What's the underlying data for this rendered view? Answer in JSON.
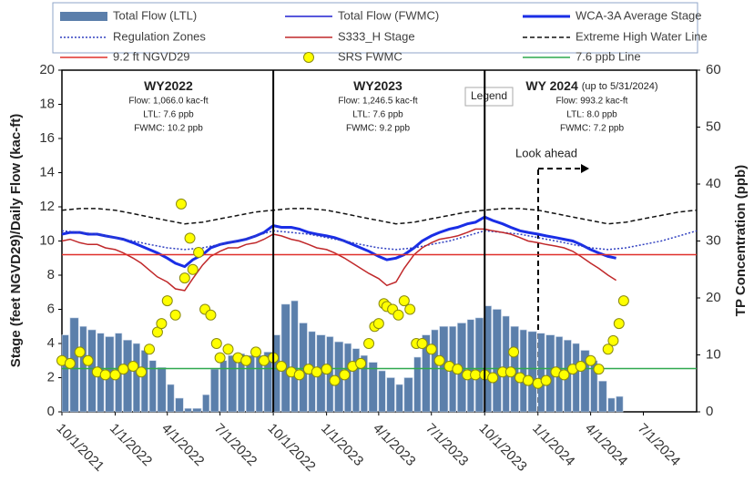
{
  "chart_data": {
    "type": "combo",
    "y_label": "Stage (feet NGVD29)/Daily Flow (kac-ft)",
    "y2_label": "TP Concentration (ppb)",
    "ylim": [
      0,
      20
    ],
    "yticks": [
      0,
      2,
      4,
      6,
      8,
      10,
      12,
      14,
      16,
      18,
      20
    ],
    "y2lim": [
      0,
      60
    ],
    "y2ticks": [
      0,
      10,
      20,
      30,
      40,
      50,
      60
    ],
    "xlim": [
      "10/1/2021",
      "10/1/2024"
    ],
    "xticks": [
      "10/1/2021",
      "1/1/2022",
      "4/1/2022",
      "7/1/2022",
      "10/1/2022",
      "1/1/2023",
      "4/1/2023",
      "7/1/2023",
      "10/1/2023",
      "1/1/2024",
      "4/1/2024",
      "7/1/2024"
    ],
    "vlines": [
      "10/1/2022",
      "10/1/2023"
    ],
    "x": [
      "10/1/2021",
      "10/15/2021",
      "11/1/2021",
      "11/15/2021",
      "12/1/2021",
      "12/15/2021",
      "1/1/2022",
      "1/15/2022",
      "2/1/2022",
      "2/15/2022",
      "3/1/2022",
      "3/15/2022",
      "4/1/2022",
      "4/15/2022",
      "5/1/2022",
      "5/15/2022",
      "6/1/2022",
      "6/15/2022",
      "7/1/2022",
      "7/15/2022",
      "8/1/2022",
      "8/15/2022",
      "9/1/2022",
      "9/15/2022",
      "10/1/2022",
      "10/15/2022",
      "11/1/2022",
      "11/15/2022",
      "12/1/2022",
      "12/15/2022",
      "1/1/2023",
      "1/15/2023",
      "2/1/2023",
      "2/15/2023",
      "3/1/2023",
      "3/15/2023",
      "4/1/2023",
      "4/15/2023",
      "5/1/2023",
      "5/15/2023",
      "6/1/2023",
      "6/15/2023",
      "7/1/2023",
      "7/15/2023",
      "8/1/2023",
      "8/15/2023",
      "9/1/2023",
      "9/15/2023",
      "10/1/2023",
      "10/15/2023",
      "11/1/2023",
      "11/15/2023",
      "12/1/2023",
      "12/15/2023",
      "1/1/2024",
      "1/15/2024",
      "2/1/2024",
      "2/15/2024",
      "3/1/2024",
      "3/15/2024",
      "4/1/2024",
      "4/15/2024",
      "5/1/2024",
      "5/15/2024"
    ],
    "series": [
      {
        "name": "Total Flow (LTL)",
        "kind": "bar",
        "color": "#5b7fab",
        "values": [
          4.5,
          5.5,
          5.0,
          4.8,
          4.6,
          4.4,
          4.6,
          4.2,
          4.0,
          3.6,
          3.0,
          2.6,
          1.6,
          0.8,
          0.2,
          0.2,
          1.0,
          2.5,
          3.0,
          3.3,
          3.4,
          3.3,
          3.3,
          3.5,
          4.5,
          6.3,
          6.5,
          5.2,
          4.7,
          4.5,
          4.4,
          4.1,
          4.0,
          3.7,
          3.3,
          2.9,
          2.4,
          2.0,
          1.6,
          2.0,
          3.2,
          4.5,
          4.8,
          5.0,
          5.0,
          5.2,
          5.4,
          5.5,
          6.2,
          6.0,
          5.6,
          5.0,
          4.8,
          4.7,
          4.6,
          4.5,
          4.4,
          4.2,
          4.0,
          3.6,
          3.0,
          1.8,
          0.8,
          0.9
        ]
      },
      {
        "name": "Total Flow (FWMC)",
        "kind": "line",
        "color": "#2020d0",
        "x": [],
        "values": []
      },
      {
        "name": "WCA-3A Average Stage",
        "kind": "line",
        "color": "#1a2ee6",
        "line_width": 3,
        "values": [
          10.4,
          10.5,
          10.5,
          10.4,
          10.4,
          10.3,
          10.2,
          10.1,
          9.9,
          9.7,
          9.5,
          9.3,
          9.0,
          8.7,
          8.5,
          8.9,
          9.2,
          9.6,
          9.8,
          9.9,
          10.0,
          10.1,
          10.3,
          10.5,
          10.9,
          10.8,
          10.8,
          10.7,
          10.5,
          10.4,
          10.3,
          10.2,
          10.0,
          9.8,
          9.6,
          9.4,
          9.1,
          8.9,
          9.0,
          9.2,
          9.6,
          10.0,
          10.3,
          10.5,
          10.7,
          10.8,
          11.0,
          11.1,
          11.4,
          11.2,
          11.0,
          10.8,
          10.6,
          10.5,
          10.4,
          10.3,
          10.2,
          10.1,
          10.0,
          9.8,
          9.5,
          9.3,
          9.1,
          9.0
        ]
      },
      {
        "name": "Regulation Zones",
        "kind": "line",
        "color": "#3040c0",
        "dash": "dotted",
        "x": [
          "10/1/2021",
          "11/1/2021",
          "12/1/2021",
          "1/1/2022",
          "2/1/2022",
          "3/1/2022",
          "4/1/2022",
          "5/1/2022",
          "6/1/2022",
          "7/1/2022",
          "8/1/2022",
          "9/1/2022",
          "10/1/2022",
          "11/1/2022",
          "12/1/2022",
          "1/1/2023",
          "2/1/2023",
          "3/1/2023",
          "4/1/2023",
          "5/1/2023",
          "6/1/2023",
          "7/1/2023",
          "8/1/2023",
          "9/1/2023",
          "10/1/2023",
          "11/1/2023",
          "12/1/2023",
          "1/1/2024",
          "2/1/2024",
          "3/1/2024",
          "4/1/2024",
          "5/1/2024",
          "6/1/2024",
          "7/1/2024",
          "8/1/2024",
          "9/1/2024",
          "10/1/2024"
        ],
        "values": [
          10.6,
          10.5,
          10.4,
          10.2,
          10.0,
          9.8,
          9.6,
          9.5,
          9.6,
          9.8,
          10.0,
          10.3,
          10.6,
          10.5,
          10.4,
          10.2,
          10.0,
          9.8,
          9.6,
          9.5,
          9.6,
          9.8,
          10.0,
          10.3,
          10.6,
          10.5,
          10.4,
          10.2,
          10.0,
          9.8,
          9.6,
          9.5,
          9.6,
          9.8,
          10.0,
          10.3,
          10.6
        ]
      },
      {
        "name": "S333_H Stage",
        "kind": "line",
        "color": "#c0282a",
        "values": [
          10.0,
          10.1,
          9.9,
          9.8,
          9.8,
          9.6,
          9.5,
          9.3,
          9.0,
          8.7,
          8.3,
          7.9,
          7.6,
          7.2,
          7.1,
          7.8,
          8.6,
          9.1,
          9.4,
          9.6,
          9.6,
          9.8,
          9.9,
          10.1,
          10.4,
          10.3,
          10.1,
          10.0,
          9.8,
          9.6,
          9.5,
          9.3,
          9.0,
          8.7,
          8.4,
          8.1,
          7.8,
          7.4,
          7.6,
          8.4,
          9.2,
          9.6,
          9.9,
          10.1,
          10.2,
          10.3,
          10.5,
          10.7,
          10.7,
          10.6,
          10.5,
          10.4,
          10.2,
          10.0,
          9.9,
          9.8,
          9.7,
          9.6,
          9.4,
          9.1,
          8.7,
          8.4,
          8.0,
          7.7
        ]
      },
      {
        "name": "Extreme High Water Line",
        "kind": "line",
        "color": "#111111",
        "dash": "dashed",
        "x": [
          "10/1/2021",
          "11/1/2021",
          "12/1/2021",
          "1/1/2022",
          "2/1/2022",
          "3/1/2022",
          "4/1/2022",
          "5/1/2022",
          "6/1/2022",
          "7/1/2022",
          "8/1/2022",
          "9/1/2022",
          "10/1/2022",
          "11/1/2022",
          "12/1/2022",
          "1/1/2023",
          "2/1/2023",
          "3/1/2023",
          "4/1/2023",
          "5/1/2023",
          "6/1/2023",
          "7/1/2023",
          "8/1/2023",
          "9/1/2023",
          "10/1/2023",
          "11/1/2023",
          "12/1/2023",
          "1/1/2024",
          "2/1/2024",
          "3/1/2024",
          "4/1/2024",
          "5/1/2024",
          "6/1/2024",
          "7/1/2024",
          "8/1/2024",
          "9/1/2024",
          "10/1/2024"
        ],
        "values": [
          11.8,
          11.9,
          11.9,
          11.8,
          11.6,
          11.4,
          11.2,
          11.0,
          11.1,
          11.3,
          11.5,
          11.7,
          11.8,
          11.9,
          11.9,
          11.8,
          11.6,
          11.4,
          11.2,
          11.0,
          11.1,
          11.3,
          11.5,
          11.7,
          11.8,
          11.9,
          11.9,
          11.8,
          11.6,
          11.4,
          11.2,
          11.0,
          11.1,
          11.3,
          11.5,
          11.7,
          11.8
        ]
      },
      {
        "name": "9.2 ft NGVD29",
        "kind": "line",
        "color": "#e0302a",
        "x": [
          "10/1/2021",
          "10/1/2024"
        ],
        "values": [
          9.2,
          9.2
        ]
      },
      {
        "name": "SRS FWMC",
        "kind": "scatter",
        "color": "#ffff00",
        "axis": "y2",
        "x": [
          "10/1/2021",
          "10/15/2021",
          "11/1/2021",
          "11/15/2021",
          "12/1/2021",
          "12/15/2021",
          "1/1/2022",
          "1/15/2022",
          "2/1/2022",
          "2/15/2022",
          "3/1/2022",
          "3/15/2022",
          "3/22/2022",
          "4/1/2022",
          "4/15/2022",
          "4/25/2022",
          "5/1/2022",
          "5/10/2022",
          "5/15/2022",
          "5/25/2022",
          "6/5/2022",
          "6/15/2022",
          "6/25/2022",
          "7/1/2022",
          "7/15/2022",
          "8/1/2022",
          "8/15/2022",
          "9/1/2022",
          "9/15/2022",
          "10/1/2022",
          "10/15/2022",
          "11/1/2022",
          "11/15/2022",
          "12/1/2022",
          "12/15/2022",
          "1/1/2023",
          "1/15/2023",
          "2/1/2023",
          "2/15/2023",
          "3/1/2023",
          "3/15/2023",
          "3/25/2023",
          "4/1/2023",
          "4/10/2023",
          "4/15/2023",
          "4/25/2023",
          "5/5/2023",
          "5/15/2023",
          "5/25/2023",
          "6/5/2023",
          "6/15/2023",
          "7/1/2023",
          "7/15/2023",
          "8/1/2023",
          "8/15/2023",
          "9/1/2023",
          "9/15/2023",
          "10/1/2023",
          "10/15/2023",
          "11/1/2023",
          "11/15/2023",
          "11/20/2023",
          "12/1/2023",
          "12/15/2023",
          "1/1/2024",
          "1/15/2024",
          "2/1/2024",
          "2/15/2024",
          "3/1/2024",
          "3/15/2024",
          "4/1/2024",
          "4/15/2024",
          "5/1/2024",
          "5/10/2024",
          "5/20/2024",
          "5/28/2024"
        ],
        "values": [
          9,
          8.5,
          10.5,
          9,
          7,
          6.5,
          6.5,
          7.5,
          8,
          7,
          11,
          14,
          15.5,
          19.5,
          17,
          36.5,
          23.5,
          30.5,
          25,
          28,
          18,
          17,
          12,
          9.5,
          11,
          9.5,
          9,
          10.5,
          9,
          9.5,
          8,
          7,
          6.5,
          7.5,
          7,
          7.5,
          5.5,
          6.5,
          8,
          8.5,
          12,
          15,
          15.5,
          19,
          18.5,
          18,
          17,
          19.5,
          18,
          12,
          12,
          11,
          9,
          8,
          7.5,
          6.5,
          6.5,
          6.5,
          6,
          7,
          7,
          10.5,
          6,
          5.5,
          5,
          5.5,
          7,
          6.5,
          7.5,
          8,
          9,
          7.5,
          11,
          12.5,
          15.5,
          19.5
        ]
      },
      {
        "name": "7.6 ppb Line",
        "kind": "line",
        "color": "#2fa84f",
        "axis": "y2",
        "x": [
          "10/1/2021",
          "10/1/2024"
        ],
        "values": [
          7.6,
          7.6
        ]
      }
    ],
    "annotations": [
      {
        "title": "WY2022",
        "lines": [
          "Flow: 1,066.0 kac-ft",
          "LTL: 7.6 ppb",
          "FWMC: 10.2 ppb"
        ]
      },
      {
        "title": "WY2023",
        "lines": [
          "Flow: 1,246.5 kac-ft",
          "LTL: 7.6 ppb",
          "FWMC: 9.2 ppb"
        ]
      },
      {
        "title": "WY 2024",
        "subtitle": "(up to 5/31/2024)",
        "lines": [
          "Flow:  993.2 kac-ft",
          "LTL: 8.0 ppb",
          "FWMC:  7.2 ppb"
        ]
      }
    ],
    "legend_label": "Legend",
    "look_ahead": "Look ahead"
  }
}
